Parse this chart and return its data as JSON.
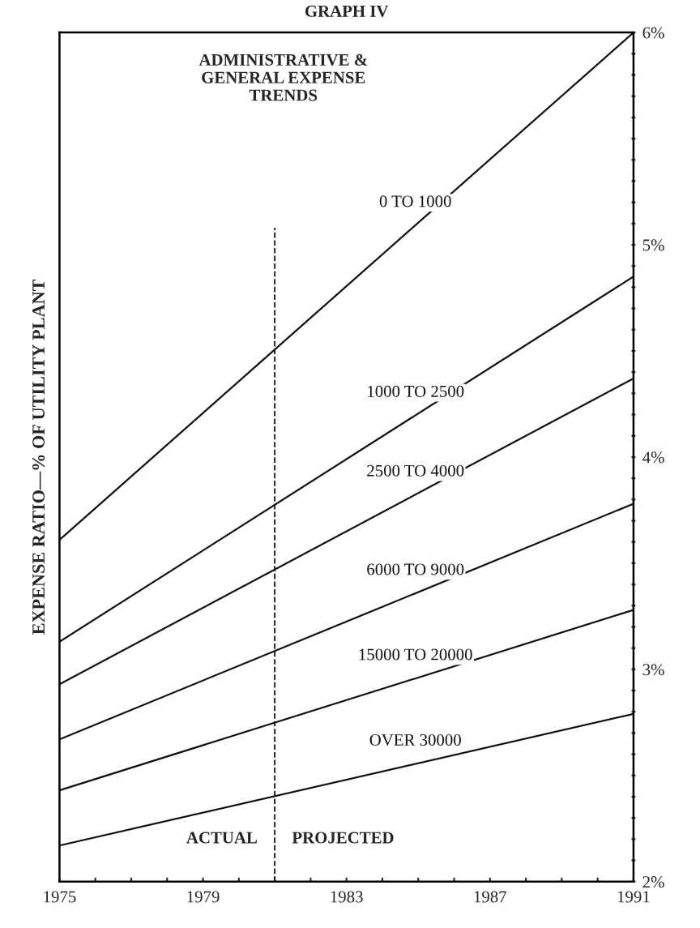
{
  "chart_data": {
    "type": "line",
    "title": "GRAPH IV",
    "subtitle": "ADMINISTRATIVE &\nGENERAL EXPENSE\nTRENDS",
    "ylabel": "EXPENSE RATIO—% OF UTILITY PLANT",
    "x": [
      1975,
      1991
    ],
    "series": [
      {
        "name": "0 TO 1000",
        "color": "#111111",
        "values": [
          3.61,
          6.0
        ]
      },
      {
        "name": "1000 TO 2500",
        "color": "#111111",
        "values": [
          3.13,
          4.85
        ]
      },
      {
        "name": "2500 TO 4000",
        "color": "#111111",
        "values": [
          2.93,
          4.37
        ]
      },
      {
        "name": "6000 TO 9000",
        "color": "#111111",
        "values": [
          2.67,
          3.78
        ]
      },
      {
        "name": "15000 TO 20000",
        "color": "#111111",
        "values": [
          2.43,
          3.28
        ]
      },
      {
        "name": "OVER 30000",
        "color": "#111111",
        "values": [
          2.17,
          2.79
        ]
      }
    ],
    "xlim": [
      1975,
      1991
    ],
    "xticks": [
      1975,
      {
        "value": 1976,
        "label": null
      },
      {
        "value": 1977,
        "label": null
      },
      {
        "value": 1978,
        "label": null
      },
      1979,
      {
        "value": 1980,
        "label": null
      },
      {
        "value": 1981,
        "label": null
      },
      {
        "value": 1982,
        "label": null
      },
      1983,
      {
        "value": 1984,
        "label": null
      },
      {
        "value": 1985,
        "label": null
      },
      {
        "value": 1986,
        "label": null
      },
      1987,
      {
        "value": 1988,
        "label": null
      },
      {
        "value": 1989,
        "label": null
      },
      {
        "value": 1990,
        "label": null
      },
      1991
    ],
    "ylim": [
      2,
      6
    ],
    "yticks": [
      {
        "value": 2,
        "label": "2%"
      },
      {
        "value": 2.1,
        "label": null
      },
      {
        "value": 2.2,
        "label": null
      },
      {
        "value": 2.3,
        "label": null
      },
      {
        "value": 2.4,
        "label": null
      },
      {
        "value": 2.5,
        "label": null
      },
      {
        "value": 2.6,
        "label": null
      },
      {
        "value": 2.7,
        "label": null
      },
      {
        "value": 2.8,
        "label": null
      },
      {
        "value": 2.9,
        "label": null
      },
      {
        "value": 3,
        "label": "3%"
      },
      {
        "value": 3.1,
        "label": null
      },
      {
        "value": 3.2,
        "label": null
      },
      {
        "value": 3.3,
        "label": null
      },
      {
        "value": 3.4,
        "label": null
      },
      {
        "value": 3.5,
        "label": null
      },
      {
        "value": 3.6,
        "label": null
      },
      {
        "value": 3.7,
        "label": null
      },
      {
        "value": 3.8,
        "label": null
      },
      {
        "value": 3.9,
        "label": null
      },
      {
        "value": 4,
        "label": "4%"
      },
      {
        "value": 4.1,
        "label": null
      },
      {
        "value": 4.2,
        "label": null
      },
      {
        "value": 4.3,
        "label": null
      },
      {
        "value": 4.4,
        "label": null
      },
      {
        "value": 4.5,
        "label": null
      },
      {
        "value": 4.6,
        "label": null
      },
      {
        "value": 4.7,
        "label": null
      },
      {
        "value": 4.8,
        "label": null
      },
      {
        "value": 4.9,
        "label": null
      },
      {
        "value": 5,
        "label": "5%"
      },
      {
        "value": 5.1,
        "label": null
      },
      {
        "value": 5.2,
        "label": null
      },
      {
        "value": 5.3,
        "label": null
      },
      {
        "value": 5.4,
        "label": null
      },
      {
        "value": 5.5,
        "label": null
      },
      {
        "value": 5.6,
        "label": null
      },
      {
        "value": 5.7,
        "label": null
      },
      {
        "value": 5.8,
        "label": null
      },
      {
        "value": 5.9,
        "label": null
      },
      {
        "value": 6,
        "label": "6%"
      }
    ],
    "ref_lines": [
      {
        "axis": "x",
        "value": 1981,
        "color": "#111111",
        "line_style": "dashed"
      }
    ],
    "annotations": [
      "ACTUAL",
      "PROJECTED"
    ],
    "grid": false,
    "legend": false,
    "marker": "none",
    "line_style": "solid"
  }
}
